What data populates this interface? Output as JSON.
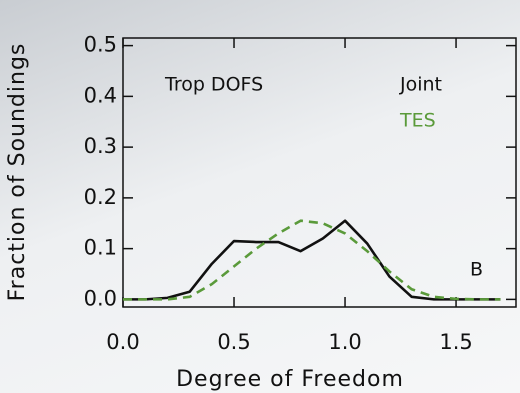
{
  "chart_data": {
    "type": "line",
    "title": "Trop DOFS",
    "annotation": "B",
    "x_label": "Degree of Freedom",
    "y_label": "Fraction of Soundings",
    "x": [
      0.0,
      0.1,
      0.2,
      0.3,
      0.4,
      0.5,
      0.6,
      0.7,
      0.8,
      0.9,
      1.0,
      1.1,
      1.2,
      1.3,
      1.4,
      1.5,
      1.6,
      1.7
    ],
    "series": [
      {
        "name": "Joint",
        "color": "#111111",
        "dash": false,
        "values": [
          0,
          0,
          0.003,
          0.015,
          0.07,
          0.115,
          0.113,
          0.113,
          0.095,
          0.12,
          0.155,
          0.11,
          0.045,
          0.005,
          0,
          0,
          0,
          0
        ]
      },
      {
        "name": "TES",
        "color": "#5a9a3a",
        "dash": true,
        "values": [
          0,
          0,
          0,
          0.005,
          0.03,
          0.065,
          0.1,
          0.13,
          0.155,
          0.15,
          0.13,
          0.095,
          0.055,
          0.02,
          0.005,
          0.001,
          0,
          0
        ]
      }
    ],
    "xlim": [
      0,
      1.77
    ],
    "ylim": [
      -0.015,
      0.515
    ],
    "xticks": [
      {
        "value": 0,
        "label": "0.0"
      },
      0.5,
      {
        "value": 1,
        "label": "1.0"
      },
      1.5
    ],
    "yticks": [
      {
        "value": 0,
        "label": "0.0"
      },
      0.1,
      0.2,
      0.3,
      0.4,
      0.5
    ]
  }
}
